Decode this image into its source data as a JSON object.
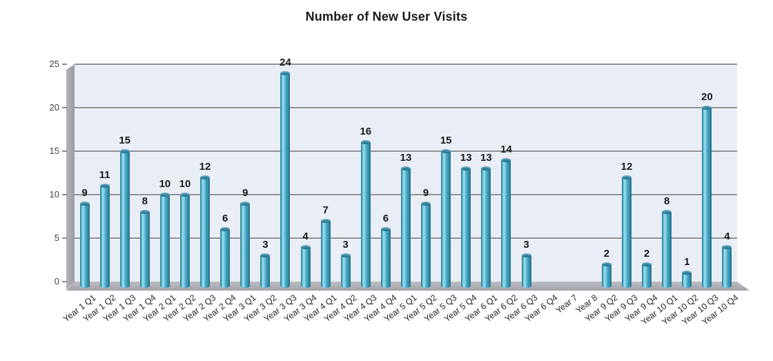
{
  "title": "Number of New User Visits",
  "chart_data": {
    "type": "bar",
    "title": "Number of New User Visits",
    "xlabel": "",
    "ylabel": "",
    "categories": [
      "Year 1 Q1",
      "Year 1 Q2",
      "Year 1 Q3",
      "Year 1 Q4",
      "Year 2 Q1",
      "Year 2 Q2",
      "Year 2 Q3",
      "Year 2 Q4",
      "Year 3 Q1",
      "Year 3 Q2",
      "Year 3 Q3",
      "Year 3 Q4",
      "Year 4 Q1",
      "Year 4 Q2",
      "Year 4 Q3",
      "Year 4 Q4",
      "Year 5 Q1",
      "Year 5 Q2",
      "Year 5 Q3",
      "Year 5 Q4",
      "Year 6 Q1",
      "Year 6 Q2",
      "Year 6 Q3",
      "Year 6 Q4",
      "Year 7",
      "Year 8",
      "Year 9 Q2",
      "Year 9 Q3",
      "Year 9 Q4",
      "Year 10 Q1",
      "Year 10 Q2",
      "Year 10 Q3",
      "Year 10 Q4"
    ],
    "values": [
      9,
      11,
      15,
      8,
      10,
      10,
      12,
      6,
      9,
      3,
      24,
      4,
      7,
      3,
      16,
      6,
      13,
      9,
      15,
      13,
      13,
      14,
      3,
      null,
      null,
      null,
      2,
      12,
      2,
      8,
      1,
      20,
      4
    ],
    "ylim": [
      0,
      25
    ],
    "yticks": [
      0,
      5,
      10,
      15,
      20,
      25
    ],
    "grid": true,
    "legend": false,
    "data_labels": true,
    "style_3d": true,
    "colors": {
      "bar_main": "#4BACC6",
      "bar_highlight": "#9EDFEE",
      "bar_edge": "#266F88",
      "plot_bg": "#E9EDF5",
      "gridline": "#8C8C90",
      "wall": "#A6A6AC",
      "title_text": "#1A1A1A",
      "label_text": "#262626"
    }
  }
}
